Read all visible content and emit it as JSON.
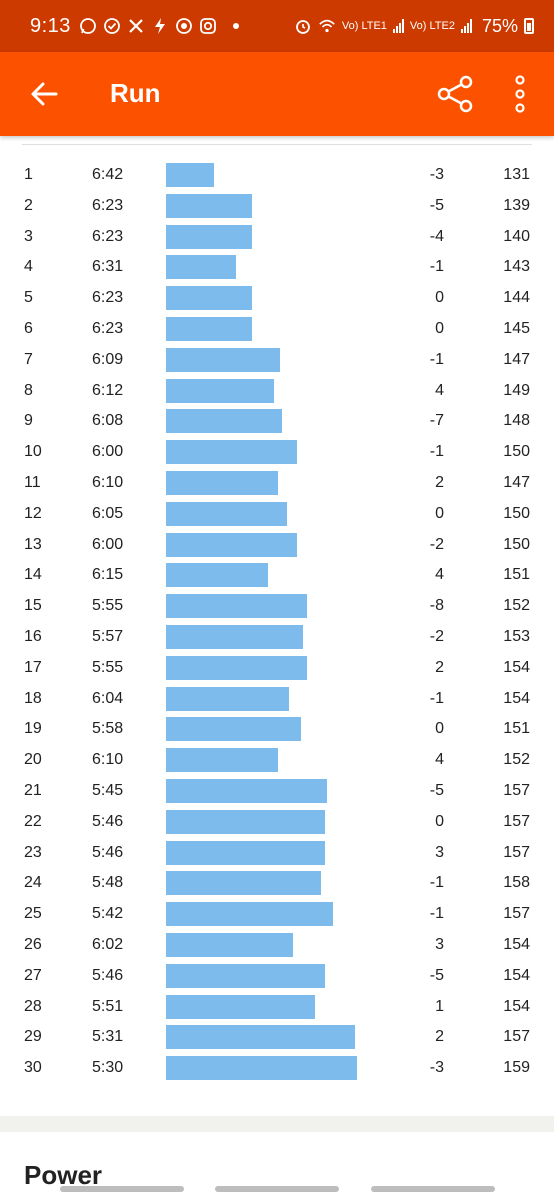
{
  "status_bar": {
    "time": "9:13",
    "battery": "75%",
    "sim1": "Vo) LTE1",
    "sim2": "Vo) LTE2",
    "icons": [
      "whatsapp-icon",
      "check-circle-icon",
      "x-cross-icon",
      "bolt-icon",
      "target-icon",
      "instagram-icon"
    ]
  },
  "app_bar": {
    "title": "Run",
    "background": "#fc5200"
  },
  "splits": [
    {
      "km": "1",
      "pace": "6:42",
      "elev": "-3",
      "hr": "131",
      "pace_seconds": 402
    },
    {
      "km": "2",
      "pace": "6:23",
      "elev": "-5",
      "hr": "139",
      "pace_seconds": 383
    },
    {
      "km": "3",
      "pace": "6:23",
      "elev": "-4",
      "hr": "140",
      "pace_seconds": 383
    },
    {
      "km": "4",
      "pace": "6:31",
      "elev": "-1",
      "hr": "143",
      "pace_seconds": 391
    },
    {
      "km": "5",
      "pace": "6:23",
      "elev": "0",
      "hr": "144",
      "pace_seconds": 383
    },
    {
      "km": "6",
      "pace": "6:23",
      "elev": "0",
      "hr": "145",
      "pace_seconds": 383
    },
    {
      "km": "7",
      "pace": "6:09",
      "elev": "-1",
      "hr": "147",
      "pace_seconds": 369
    },
    {
      "km": "8",
      "pace": "6:12",
      "elev": "4",
      "hr": "149",
      "pace_seconds": 372
    },
    {
      "km": "9",
      "pace": "6:08",
      "elev": "-7",
      "hr": "148",
      "pace_seconds": 368
    },
    {
      "km": "10",
      "pace": "6:00",
      "elev": "-1",
      "hr": "150",
      "pace_seconds": 360
    },
    {
      "km": "11",
      "pace": "6:10",
      "elev": "2",
      "hr": "147",
      "pace_seconds": 370
    },
    {
      "km": "12",
      "pace": "6:05",
      "elev": "0",
      "hr": "150",
      "pace_seconds": 365
    },
    {
      "km": "13",
      "pace": "6:00",
      "elev": "-2",
      "hr": "150",
      "pace_seconds": 360
    },
    {
      "km": "14",
      "pace": "6:15",
      "elev": "4",
      "hr": "151",
      "pace_seconds": 375
    },
    {
      "km": "15",
      "pace": "5:55",
      "elev": "-8",
      "hr": "152",
      "pace_seconds": 355
    },
    {
      "km": "16",
      "pace": "5:57",
      "elev": "-2",
      "hr": "153",
      "pace_seconds": 357
    },
    {
      "km": "17",
      "pace": "5:55",
      "elev": "2",
      "hr": "154",
      "pace_seconds": 355
    },
    {
      "km": "18",
      "pace": "6:04",
      "elev": "-1",
      "hr": "154",
      "pace_seconds": 364
    },
    {
      "km": "19",
      "pace": "5:58",
      "elev": "0",
      "hr": "151",
      "pace_seconds": 358
    },
    {
      "km": "20",
      "pace": "6:10",
      "elev": "4",
      "hr": "152",
      "pace_seconds": 370
    },
    {
      "km": "21",
      "pace": "5:45",
      "elev": "-5",
      "hr": "157",
      "pace_seconds": 345
    },
    {
      "km": "22",
      "pace": "5:46",
      "elev": "0",
      "hr": "157",
      "pace_seconds": 346
    },
    {
      "km": "23",
      "pace": "5:46",
      "elev": "3",
      "hr": "157",
      "pace_seconds": 346
    },
    {
      "km": "24",
      "pace": "5:48",
      "elev": "-1",
      "hr": "158",
      "pace_seconds": 348
    },
    {
      "km": "25",
      "pace": "5:42",
      "elev": "-1",
      "hr": "157",
      "pace_seconds": 342
    },
    {
      "km": "26",
      "pace": "6:02",
      "elev": "3",
      "hr": "154",
      "pace_seconds": 362
    },
    {
      "km": "27",
      "pace": "5:46",
      "elev": "-5",
      "hr": "154",
      "pace_seconds": 346
    },
    {
      "km": "28",
      "pace": "5:51",
      "elev": "1",
      "hr": "154",
      "pace_seconds": 351
    },
    {
      "km": "29",
      "pace": "5:31",
      "elev": "2",
      "hr": "157",
      "pace_seconds": 331
    },
    {
      "km": "30",
      "pace": "5:30",
      "elev": "-3",
      "hr": "159",
      "pace_seconds": 330
    }
  ],
  "bar_color": "#7cbbec",
  "next_section_title": "Power"
}
